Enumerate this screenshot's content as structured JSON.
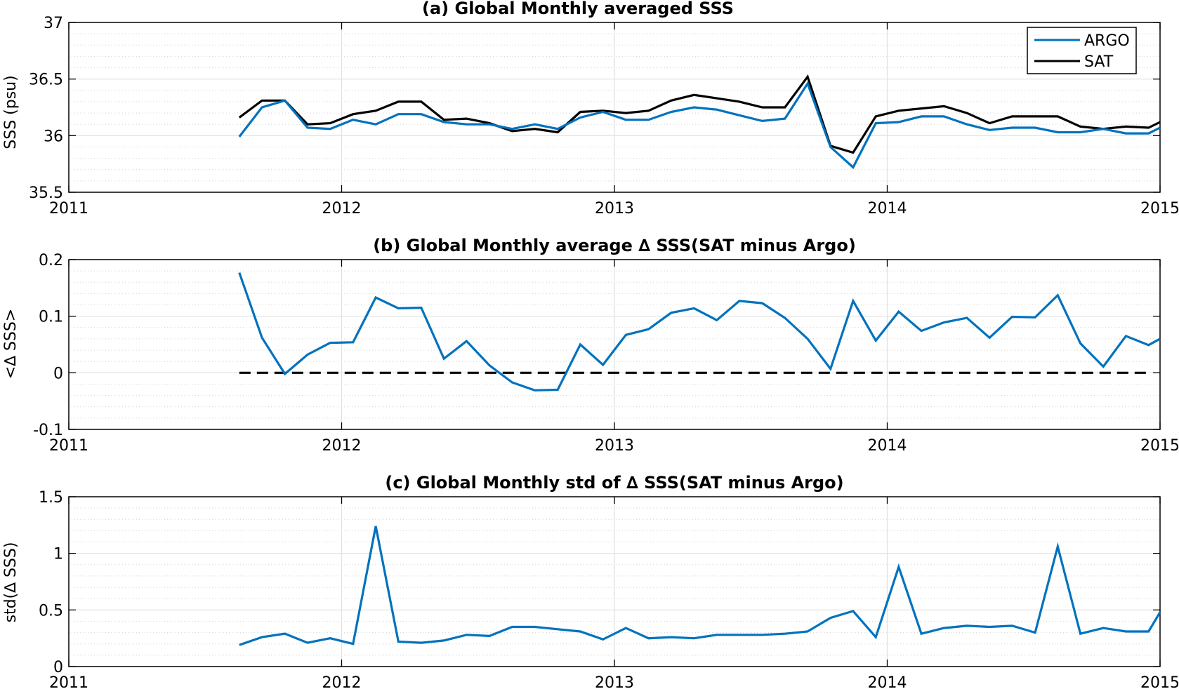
{
  "chart_data": [
    {
      "type": "line",
      "title": "(a) Global Monthly averaged SSS",
      "ylabel": "SSS (psu)",
      "xlabel": "",
      "xlim": [
        2011,
        2015
      ],
      "ylim": [
        35.5,
        37
      ],
      "xticks": [
        "2011",
        "2012",
        "2013",
        "2014",
        "2015"
      ],
      "yticks": [
        "35.5",
        "36",
        "36.5",
        "37"
      ],
      "legend": "top-right",
      "grid": true,
      "x": [
        2011.625,
        2011.708,
        2011.792,
        2011.875,
        2011.958,
        2012.042,
        2012.125,
        2012.208,
        2012.292,
        2012.375,
        2012.458,
        2012.542,
        2012.625,
        2012.708,
        2012.792,
        2012.875,
        2012.958,
        2013.042,
        2013.125,
        2013.208,
        2013.292,
        2013.375,
        2013.458,
        2013.542,
        2013.625,
        2013.708,
        2013.792,
        2013.875,
        2013.958,
        2014.042,
        2014.125,
        2014.208,
        2014.292,
        2014.375,
        2014.458,
        2014.542,
        2014.625,
        2014.708,
        2014.792,
        2014.875,
        2014.958,
        2015.0
      ],
      "series": [
        {
          "name": "ARGO",
          "color": "#0072BD",
          "values": [
            35.99,
            36.25,
            36.31,
            36.07,
            36.06,
            36.14,
            36.1,
            36.19,
            36.19,
            36.12,
            36.1,
            36.1,
            36.06,
            36.1,
            36.06,
            36.16,
            36.21,
            36.14,
            36.14,
            36.21,
            36.25,
            36.23,
            36.18,
            36.13,
            36.15,
            36.46,
            35.9,
            35.72,
            36.11,
            36.12,
            36.17,
            36.17,
            36.1,
            36.05,
            36.07,
            36.07,
            36.03,
            36.03,
            36.06,
            36.02,
            36.02,
            36.07
          ]
        },
        {
          "name": "SAT",
          "color": "#000000",
          "values": [
            36.16,
            36.31,
            36.31,
            36.1,
            36.11,
            36.19,
            36.22,
            36.3,
            36.3,
            36.14,
            36.15,
            36.11,
            36.04,
            36.06,
            36.03,
            36.21,
            36.22,
            36.2,
            36.22,
            36.31,
            36.36,
            36.33,
            36.3,
            36.25,
            36.25,
            36.52,
            35.91,
            35.85,
            36.17,
            36.22,
            36.24,
            36.26,
            36.2,
            36.11,
            36.17,
            36.17,
            36.17,
            36.08,
            36.06,
            36.08,
            36.07,
            36.12
          ]
        }
      ]
    },
    {
      "type": "line",
      "title": "(b) Global Monthly average ∆ SSS(SAT minus Argo)",
      "ylabel": "<∆ SSS>",
      "xlabel": "",
      "xlim": [
        2011,
        2015
      ],
      "ylim": [
        -0.1,
        0.2
      ],
      "xticks": [
        "2011",
        "2012",
        "2013",
        "2014",
        "2015"
      ],
      "yticks": [
        "-0.1",
        "0",
        "0.1",
        "0.2"
      ],
      "grid": true,
      "reference_line": {
        "y": 0,
        "x": [
          2011.625,
          2014.958
        ],
        "style": "dashed",
        "color": "#000000"
      },
      "x": [
        2011.625,
        2011.708,
        2011.792,
        2011.875,
        2011.958,
        2012.042,
        2012.125,
        2012.208,
        2012.292,
        2012.375,
        2012.458,
        2012.542,
        2012.625,
        2012.708,
        2012.792,
        2012.875,
        2012.958,
        2013.042,
        2013.125,
        2013.208,
        2013.292,
        2013.375,
        2013.458,
        2013.542,
        2013.625,
        2013.708,
        2013.792,
        2013.875,
        2013.958,
        2014.042,
        2014.125,
        2014.208,
        2014.292,
        2014.375,
        2014.458,
        2014.542,
        2014.625,
        2014.708,
        2014.792,
        2014.875,
        2014.958,
        2015.0
      ],
      "series": [
        {
          "color": "#0072BD",
          "values": [
            0.177,
            0.062,
            -0.002,
            0.032,
            0.053,
            0.054,
            0.133,
            0.114,
            0.115,
            0.025,
            0.056,
            0.013,
            -0.017,
            -0.031,
            -0.03,
            0.05,
            0.014,
            0.067,
            0.077,
            0.106,
            0.114,
            0.093,
            0.127,
            0.123,
            0.097,
            0.06,
            0.007,
            0.127,
            0.057,
            0.108,
            0.074,
            0.089,
            0.097,
            0.062,
            0.099,
            0.098,
            0.137,
            0.052,
            0.011,
            0.065,
            0.049,
            0.06
          ]
        }
      ]
    },
    {
      "type": "line",
      "title": "(c) Global Monthly std of ∆ SSS(SAT minus Argo)",
      "ylabel": "std(∆ SSS)",
      "xlabel": "",
      "xlim": [
        2011,
        2015
      ],
      "ylim": [
        0,
        1.5
      ],
      "xticks": [
        "2011",
        "2012",
        "2013",
        "2014",
        "2015"
      ],
      "yticks": [
        "0",
        "0.5",
        "1",
        "1.5"
      ],
      "grid": true,
      "x": [
        2011.625,
        2011.708,
        2011.792,
        2011.875,
        2011.958,
        2012.042,
        2012.125,
        2012.208,
        2012.292,
        2012.375,
        2012.458,
        2012.542,
        2012.625,
        2012.708,
        2012.792,
        2012.875,
        2012.958,
        2013.042,
        2013.125,
        2013.208,
        2013.292,
        2013.375,
        2013.458,
        2013.542,
        2013.625,
        2013.708,
        2013.792,
        2013.875,
        2013.958,
        2014.042,
        2014.125,
        2014.208,
        2014.292,
        2014.375,
        2014.458,
        2014.542,
        2014.625,
        2014.708,
        2014.792,
        2014.875,
        2014.958,
        2015.0
      ],
      "series": [
        {
          "color": "#0072BD",
          "values": [
            0.19,
            0.26,
            0.29,
            0.21,
            0.25,
            0.2,
            1.24,
            0.22,
            0.21,
            0.23,
            0.28,
            0.27,
            0.35,
            0.35,
            0.33,
            0.31,
            0.24,
            0.34,
            0.25,
            0.26,
            0.25,
            0.28,
            0.28,
            0.28,
            0.29,
            0.31,
            0.43,
            0.49,
            0.26,
            0.88,
            0.29,
            0.34,
            0.36,
            0.35,
            0.36,
            0.3,
            1.06,
            0.29,
            0.34,
            0.31,
            0.31,
            0.48
          ]
        }
      ]
    }
  ]
}
